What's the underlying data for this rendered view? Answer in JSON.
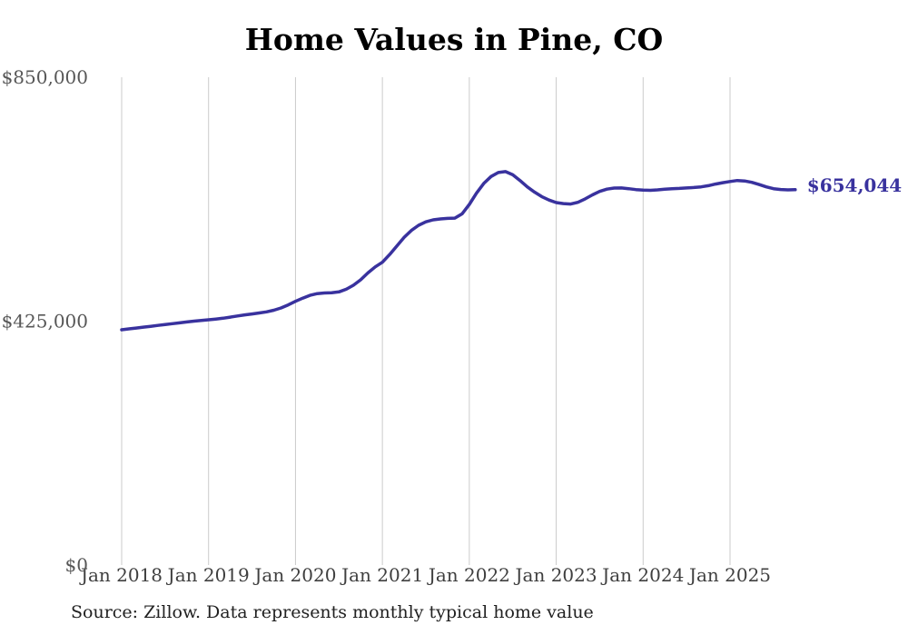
{
  "chart_data": {
    "type": "line",
    "title": "Home Values in Pine, CO",
    "source_note": "Source: Zillow. Data represents monthly typical home value",
    "series_name": "Monthly typical home value",
    "latest_value_label": "$654,044",
    "latest_value": 654044,
    "grid": "vertical-only",
    "legend_position": "none",
    "ylim": [
      0,
      850000
    ],
    "y_ticks": [
      {
        "value": 0,
        "label": "$0"
      },
      {
        "value": 425000,
        "label": "$425,000"
      },
      {
        "value": 850000,
        "label": "$850,000"
      }
    ],
    "x_ticks": [
      {
        "index": 0,
        "label": "Jan 2018"
      },
      {
        "index": 12,
        "label": "Jan 2019"
      },
      {
        "index": 24,
        "label": "Jan 2020"
      },
      {
        "index": 36,
        "label": "Jan 2021"
      },
      {
        "index": 48,
        "label": "Jan 2022"
      },
      {
        "index": 60,
        "label": "Jan 2023"
      },
      {
        "index": 72,
        "label": "Jan 2024"
      },
      {
        "index": 84,
        "label": "Jan 2025"
      }
    ],
    "x": [
      "2018-01",
      "2018-02",
      "2018-03",
      "2018-04",
      "2018-05",
      "2018-06",
      "2018-07",
      "2018-08",
      "2018-09",
      "2018-10",
      "2018-11",
      "2018-12",
      "2019-01",
      "2019-02",
      "2019-03",
      "2019-04",
      "2019-05",
      "2019-06",
      "2019-07",
      "2019-08",
      "2019-09",
      "2019-10",
      "2019-11",
      "2019-12",
      "2020-01",
      "2020-02",
      "2020-03",
      "2020-04",
      "2020-05",
      "2020-06",
      "2020-07",
      "2020-08",
      "2020-09",
      "2020-10",
      "2020-11",
      "2020-12",
      "2021-01",
      "2021-02",
      "2021-03",
      "2021-04",
      "2021-05",
      "2021-06",
      "2021-07",
      "2021-08",
      "2021-09",
      "2021-10",
      "2021-11",
      "2021-12",
      "2022-01",
      "2022-02",
      "2022-03",
      "2022-04",
      "2022-05",
      "2022-06",
      "2022-07",
      "2022-08",
      "2022-09",
      "2022-10",
      "2022-11",
      "2022-12",
      "2023-01",
      "2023-02",
      "2023-03",
      "2023-04",
      "2023-05",
      "2023-06",
      "2023-07",
      "2023-08",
      "2023-09",
      "2023-10",
      "2023-11",
      "2023-12",
      "2024-01",
      "2024-02",
      "2024-03",
      "2024-04",
      "2024-05",
      "2024-06",
      "2024-07",
      "2024-08",
      "2024-09",
      "2024-10",
      "2024-11",
      "2024-12",
      "2025-01",
      "2025-02",
      "2025-03",
      "2025-04",
      "2025-05",
      "2025-06",
      "2025-07",
      "2025-08",
      "2025-09",
      "2025-10"
    ],
    "values": [
      410000,
      411500,
      413000,
      414500,
      416000,
      417500,
      419000,
      420500,
      422000,
      423500,
      425000,
      426200,
      427400,
      428600,
      430000,
      432000,
      434000,
      436000,
      437500,
      439200,
      441200,
      444000,
      448000,
      453300,
      459500,
      465000,
      470000,
      473000,
      474000,
      474500,
      476000,
      480500,
      487500,
      497000,
      509000,
      519500,
      527500,
      541000,
      556000,
      571000,
      583000,
      592000,
      598000,
      601500,
      603000,
      604000,
      604500,
      612000,
      628400,
      648000,
      665000,
      677000,
      684000,
      685500,
      680000,
      670000,
      659000,
      650000,
      642000,
      636000,
      631600,
      629800,
      629000,
      632000,
      638000,
      645000,
      651000,
      655000,
      656900,
      657000,
      655800,
      654200,
      653200,
      653000,
      653800,
      654800,
      655800,
      656300,
      657000,
      657800,
      659000,
      661000,
      663800,
      666200,
      668300,
      670000,
      669200,
      666800,
      663000,
      659000,
      655800,
      654300,
      653800,
      654044
    ],
    "colors": {
      "line": "#39329E",
      "latest_label": "#39329E",
      "grid": "#CBCBCB",
      "title": "#000000",
      "y_label": "#575757",
      "x_label": "#3F3F3F",
      "source": "#212121",
      "background": "#FFFFFF"
    }
  }
}
